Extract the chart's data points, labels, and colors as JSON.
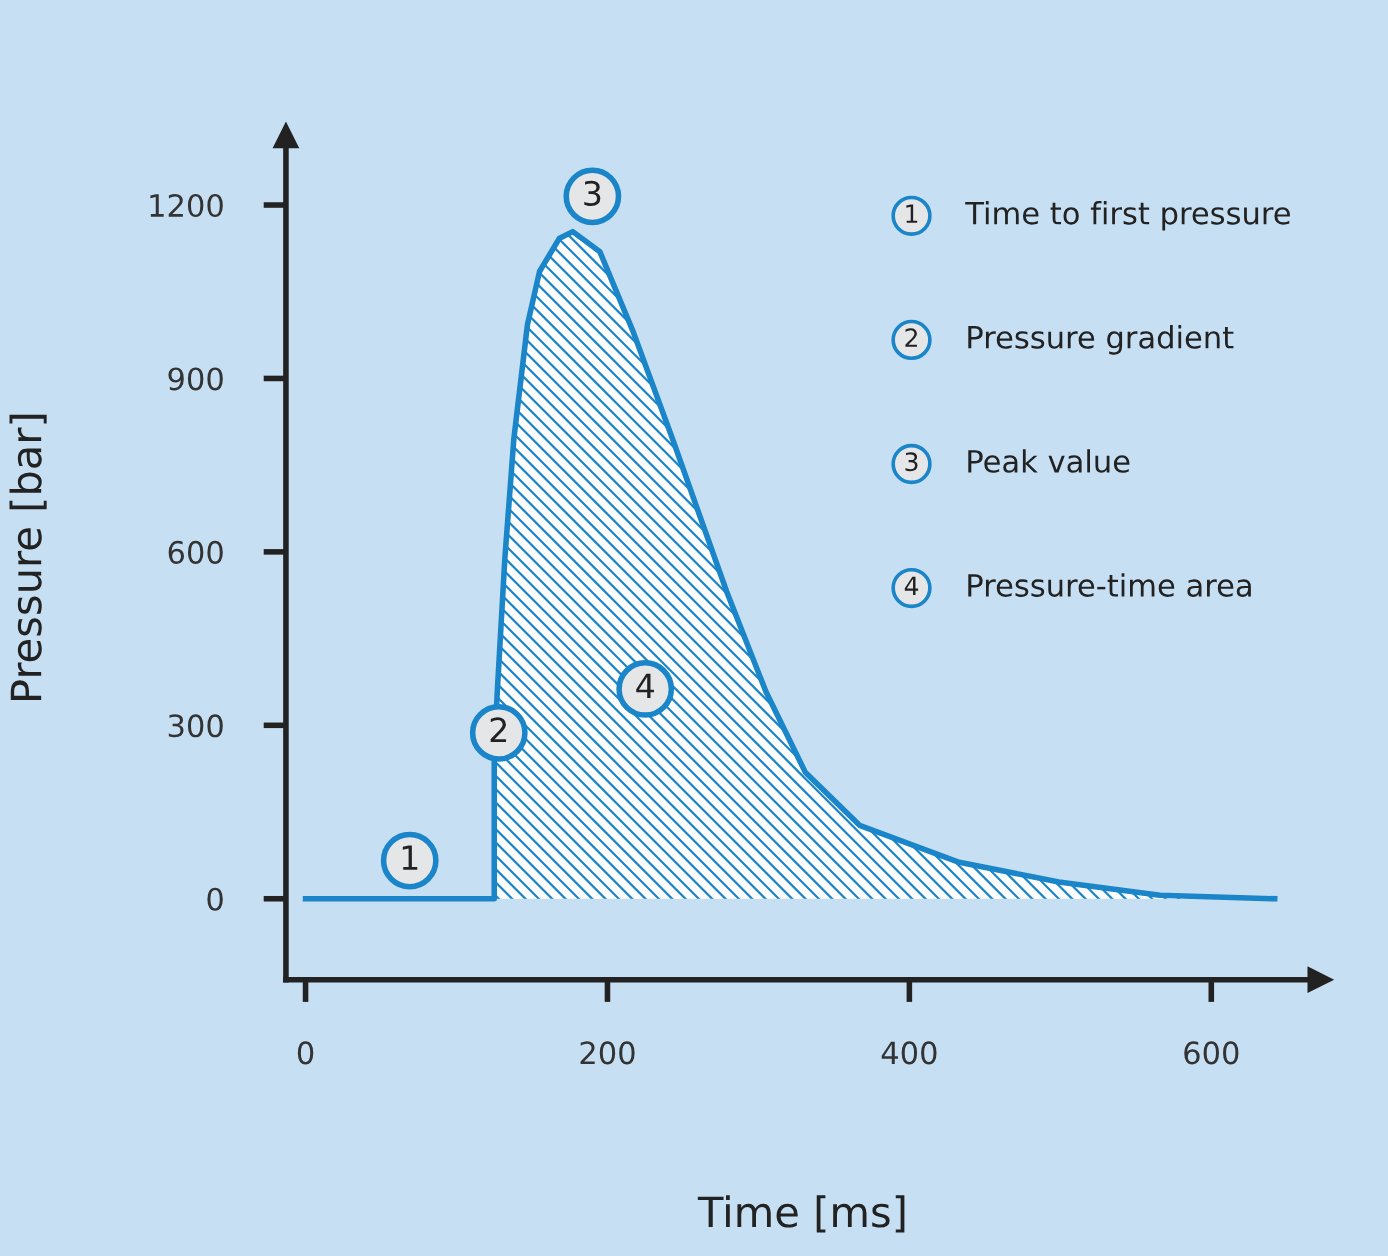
{
  "chart_data": {
    "type": "area",
    "xlabel": "Time [ms]",
    "ylabel": "Pressure [bar]",
    "series": [
      {
        "color": "#1a85c8",
        "x": [
          0,
          125,
          125,
          127,
          132,
          138,
          147,
          155,
          168,
          177,
          195,
          217,
          243,
          279,
          305,
          331,
          367,
          433,
          499,
          566,
          642
        ],
        "values": [
          0,
          0,
          242,
          358,
          588,
          796,
          993,
          1085,
          1142,
          1154,
          1119,
          981,
          796,
          531,
          358,
          219,
          127,
          63,
          29,
          6,
          0
        ]
      }
    ],
    "xlim": [
      -13,
      672
    ],
    "ylim": [
      -140,
      1320
    ],
    "xticks": [
      0,
      200,
      400,
      600
    ],
    "yticks": [
      0,
      300,
      600,
      900,
      1200
    ],
    "grid": false,
    "annotations": [
      {
        "text": "1",
        "x": 69,
        "y": 66
      },
      {
        "text": "2",
        "x": 128,
        "y": 287
      },
      {
        "text": "3",
        "x": 190,
        "y": 1215
      },
      {
        "text": "4",
        "x": 225,
        "y": 363
      },
      "1 Time to first pressure",
      "2 Pressure gradient",
      "3 Peak value",
      "4 Pressure-time area"
    ]
  }
}
